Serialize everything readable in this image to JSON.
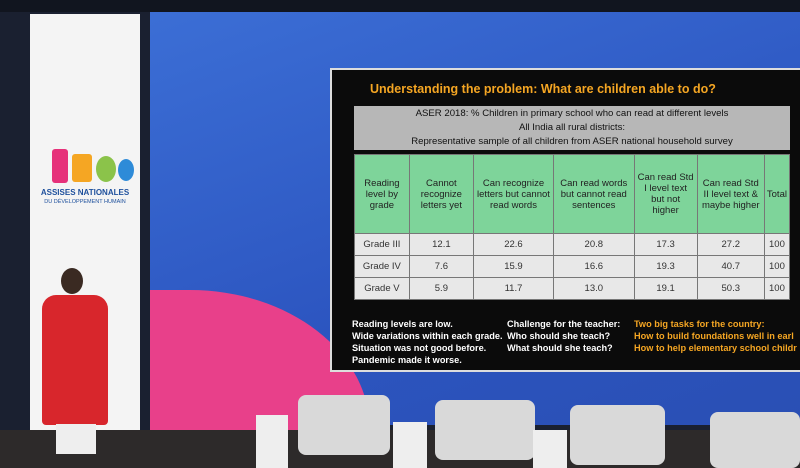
{
  "banner": {
    "line1": "ASSISES NATIONALES",
    "line2": "DU DÉVELOPPEMENT HUMAIN"
  },
  "slide": {
    "title": "Understanding the problem: What are children able to do?",
    "table": {
      "caption": [
        "ASER 2018: % Children in primary school who can read at different levels",
        "All India all rural districts:",
        "Representative sample of all children from ASER national household survey"
      ],
      "columns": [
        "Reading level by grade",
        "Cannot recognize letters yet",
        "Can recognize letters but cannot read words",
        "Can read words but cannot read sentences",
        "Can read Std I level text but not higher",
        "Can read Std II level text & maybe higher",
        "Total"
      ],
      "rows": [
        [
          "Grade III",
          "12.1",
          "22.6",
          "20.8",
          "17.3",
          "27.2",
          "100"
        ],
        [
          "Grade IV",
          "7.6",
          "15.9",
          "16.6",
          "19.3",
          "40.7",
          "100"
        ],
        [
          "Grade V",
          "5.9",
          "11.7",
          "13.0",
          "19.1",
          "50.3",
          "100"
        ]
      ]
    },
    "notes": [
      [
        "Reading levels are low.",
        "Wide variations within each grade.",
        "Situation was not good before.",
        "Pandemic made it worse."
      ],
      [
        "Challenge for the teacher:",
        "Who should she teach?",
        "What should she teach?"
      ],
      [
        "Two big tasks for the country:",
        "How to build foundations well in earl",
        "How to help elementary school childr"
      ]
    ]
  }
}
